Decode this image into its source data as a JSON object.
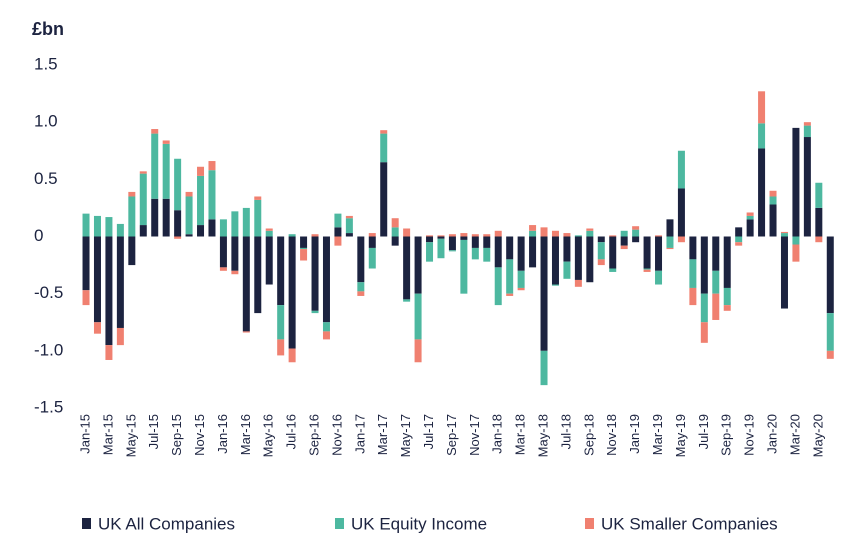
{
  "chart_data": {
    "type": "stacked-bar",
    "y_label": "£bn",
    "categories": [
      "Jan-15",
      null,
      "Mar-15",
      null,
      "May-15",
      null,
      "Jul-15",
      null,
      "Sep-15",
      null,
      "Nov-15",
      null,
      "Jan-16",
      null,
      "Mar-16",
      null,
      "May-16",
      null,
      "Jul-16",
      null,
      "Sep-16",
      null,
      "Nov-16",
      null,
      "Jan-17",
      null,
      "Mar-17",
      null,
      "May-17",
      null,
      "Jul-17",
      null,
      "Sep-17",
      null,
      "Nov-17",
      null,
      "Jan-18",
      null,
      "Mar-18",
      null,
      "May-18",
      null,
      "Jul-18",
      null,
      "Sep-18",
      null,
      "Nov-18",
      null,
      "Jan-19",
      null,
      "Mar-19",
      null,
      "May-19",
      null,
      "Jul-19",
      null,
      "Sep-19",
      null,
      "Nov-19",
      null,
      "Jan-20",
      null,
      "Mar-20",
      null,
      "May-20",
      null
    ],
    "series": [
      {
        "name": "UK All Companies",
        "color": "#1c2340",
        "values": [
          -0.47,
          -0.75,
          -0.95,
          -0.8,
          -0.25,
          0.1,
          0.33,
          0.33,
          0.23,
          0.02,
          0.1,
          0.15,
          -0.27,
          -0.3,
          -0.83,
          -0.67,
          -0.42,
          -0.6,
          -0.98,
          -0.1,
          -0.65,
          -0.75,
          0.08,
          0.03,
          -0.4,
          -0.1,
          0.65,
          -0.08,
          -0.55,
          -0.5,
          -0.05,
          -0.02,
          -0.12,
          -0.03,
          -0.1,
          -0.1,
          -0.27,
          -0.2,
          -0.3,
          -0.27,
          -1.0,
          -0.42,
          -0.22,
          -0.38,
          -0.4,
          -0.05,
          -0.28,
          -0.08,
          -0.05,
          -0.28,
          -0.3,
          0.15,
          0.42,
          -0.2,
          -0.5,
          -0.3,
          -0.45,
          0.08,
          0.15,
          0.77,
          0.28,
          -0.63,
          0.95,
          0.87,
          0.25,
          -0.67
        ]
      },
      {
        "name": "UK Equity Income",
        "color": "#4db8a0",
        "values": [
          0.2,
          0.18,
          0.17,
          0.11,
          0.35,
          0.45,
          0.57,
          0.48,
          0.45,
          0.33,
          0.43,
          0.43,
          0.15,
          0.22,
          0.25,
          0.32,
          0.05,
          -0.3,
          0.02,
          -0.01,
          -0.02,
          -0.08,
          0.12,
          0.13,
          -0.08,
          -0.18,
          0.25,
          0.08,
          -0.02,
          -0.4,
          -0.17,
          -0.17,
          -0.01,
          -0.47,
          -0.1,
          -0.12,
          -0.33,
          -0.3,
          -0.15,
          0.05,
          -0.3,
          -0.01,
          -0.15,
          0.01,
          0.05,
          -0.15,
          -0.03,
          0.05,
          0.06,
          -0.01,
          -0.12,
          -0.1,
          0.33,
          -0.25,
          -0.25,
          -0.2,
          -0.15,
          -0.05,
          0.03,
          0.22,
          0.07,
          0.03,
          -0.07,
          0.1,
          0.22,
          -0.33
        ]
      },
      {
        "name": "UK Smaller Companies",
        "color": "#f08070",
        "values": [
          -0.13,
          -0.1,
          -0.13,
          -0.15,
          0.04,
          0.02,
          0.04,
          0.03,
          -0.02,
          0.04,
          0.08,
          0.08,
          -0.03,
          -0.03,
          -0.01,
          0.03,
          0.02,
          -0.14,
          -0.12,
          -0.1,
          0.02,
          -0.07,
          -0.08,
          0.02,
          -0.04,
          0.03,
          0.03,
          0.08,
          0.07,
          -0.2,
          0.01,
          0.01,
          0.02,
          0.03,
          0.02,
          0.02,
          0.05,
          -0.02,
          -0.02,
          0.05,
          0.08,
          0.05,
          0.03,
          -0.06,
          0.02,
          -0.05,
          0.01,
          -0.03,
          0.03,
          -0.02,
          0.01,
          -0.01,
          -0.05,
          -0.15,
          -0.18,
          -0.23,
          -0.05,
          -0.03,
          0.03,
          0.28,
          0.05,
          0.01,
          -0.15,
          0.03,
          -0.05,
          -0.07
        ]
      }
    ],
    "ylim": [
      -1.5,
      1.5
    ],
    "yticks": [
      -1.5,
      {
        "value": -1,
        "label": "-1.0"
      },
      -0.5,
      0,
      0.5,
      {
        "value": 1,
        "label": "1.0"
      },
      1.5
    ],
    "legend": "bottom"
  }
}
